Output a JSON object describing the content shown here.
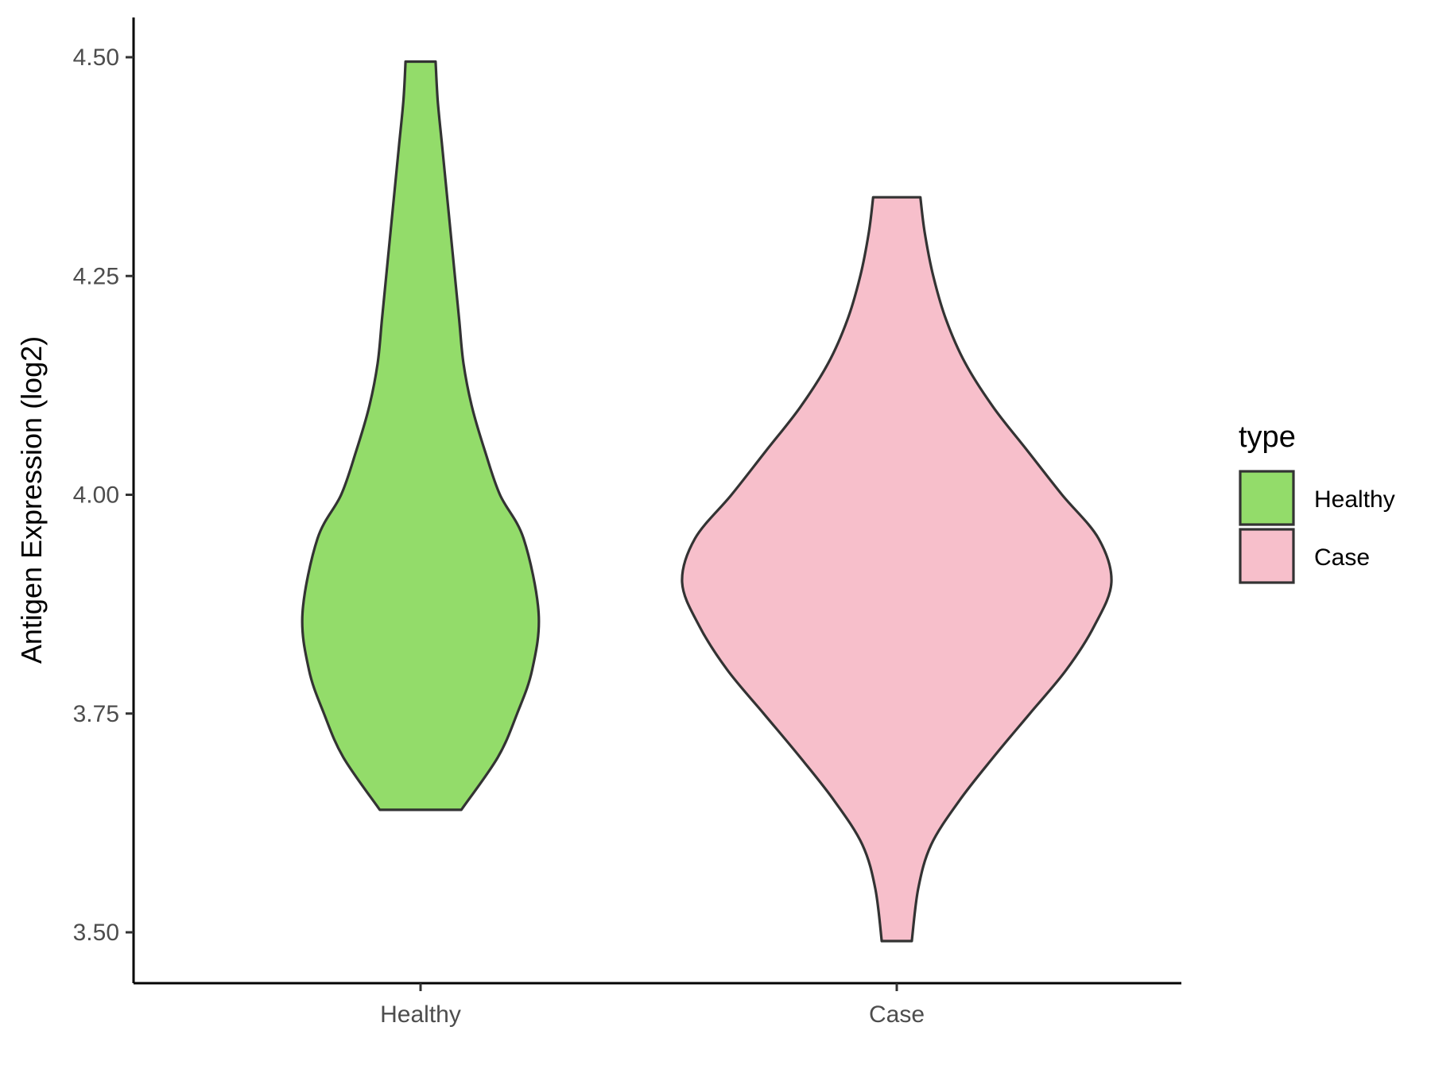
{
  "chart_data": {
    "type": "violin",
    "title": "",
    "xlabel": "",
    "ylabel": "Antigen Expression (log2)",
    "ylim": [
      3.44,
      4.545
    ],
    "yticks": [
      "3.50",
      "3.75",
      "4.00",
      "4.25",
      "4.50"
    ],
    "ytick_values": [
      3.5,
      3.75,
      4.0,
      4.25,
      4.5
    ],
    "categories": [
      "Healthy",
      "Case"
    ],
    "grid": false,
    "legend": {
      "title": "type",
      "position": "right",
      "entries": [
        {
          "label": "Healthy",
          "color": "#93dc6a"
        },
        {
          "label": "Case",
          "color": "#f7bfcb"
        }
      ]
    },
    "series": [
      {
        "name": "Healthy",
        "color": "#93dc6a",
        "min": 3.64,
        "max": 4.495,
        "density_profile": [
          [
            3.64,
            0.19
          ],
          [
            3.7,
            0.36
          ],
          [
            3.75,
            0.45
          ],
          [
            3.8,
            0.52
          ],
          [
            3.865,
            0.55
          ],
          [
            3.95,
            0.48
          ],
          [
            4.0,
            0.37
          ],
          [
            4.05,
            0.3
          ],
          [
            4.1,
            0.24
          ],
          [
            4.15,
            0.2
          ],
          [
            4.2,
            0.18
          ],
          [
            4.25,
            0.16
          ],
          [
            4.3,
            0.14
          ],
          [
            4.35,
            0.12
          ],
          [
            4.4,
            0.1
          ],
          [
            4.45,
            0.08
          ],
          [
            4.495,
            0.07
          ]
        ]
      },
      {
        "name": "Case",
        "color": "#f7bfcb",
        "min": 3.49,
        "max": 4.34,
        "density_profile": [
          [
            3.49,
            0.07
          ],
          [
            3.55,
            0.1
          ],
          [
            3.6,
            0.16
          ],
          [
            3.65,
            0.29
          ],
          [
            3.7,
            0.45
          ],
          [
            3.75,
            0.62
          ],
          [
            3.8,
            0.79
          ],
          [
            3.85,
            0.92
          ],
          [
            3.9,
            1.0
          ],
          [
            3.95,
            0.94
          ],
          [
            4.0,
            0.77
          ],
          [
            4.05,
            0.61
          ],
          [
            4.1,
            0.45
          ],
          [
            4.15,
            0.32
          ],
          [
            4.2,
            0.23
          ],
          [
            4.25,
            0.17
          ],
          [
            4.3,
            0.13
          ],
          [
            4.34,
            0.11
          ]
        ]
      }
    ]
  }
}
